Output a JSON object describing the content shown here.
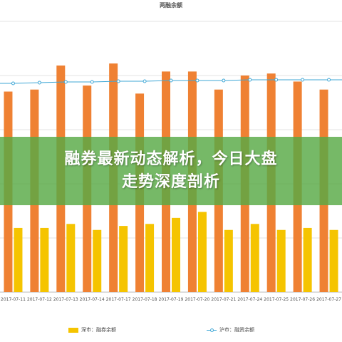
{
  "chart_data": {
    "type": "bar",
    "title": "两融余额",
    "categories": [
      "2017-07-11",
      "2017-07-12",
      "2017-07-13",
      "2017-07-14",
      "2017-07-17",
      "2017-07-18",
      "2017-07-19",
      "2017-07-20",
      "2017-07-21",
      "2017-07-24",
      "2017-07-25",
      "2017-07-26",
      "2017-07-27"
    ],
    "series": [
      {
        "name": "深市：融券余额",
        "kind": "bar",
        "color": "#f5c400",
        "values": [
          0.32,
          0.32,
          0.34,
          0.31,
          0.33,
          0.34,
          0.37,
          0.4,
          0.31,
          0.34,
          0.31,
          0.32,
          0.31
        ]
      },
      {
        "name": "沪市：融资余额",
        "kind": "line",
        "color": "#3fa7d6",
        "values": [
          0.95,
          0.96,
          0.97,
          0.97,
          0.98,
          0.98,
          0.99,
          0.99,
          0.99,
          1.0,
          1.0,
          1.0,
          1.0
        ]
      }
    ],
    "orange_values": [
      1.0,
      1.01,
      1.13,
      1.03,
      1.14,
      0.99,
      1.1,
      1.1,
      1.01,
      1.08,
      1.09,
      1.05,
      1.01
    ],
    "orange_color": "#ef8133",
    "ylim": [
      0,
      1.35
    ],
    "grid": true,
    "legend_position": "bottom"
  },
  "banner": {
    "line1": "融券最新动态解析，今日大盘",
    "line2": "走势深度剖析"
  }
}
